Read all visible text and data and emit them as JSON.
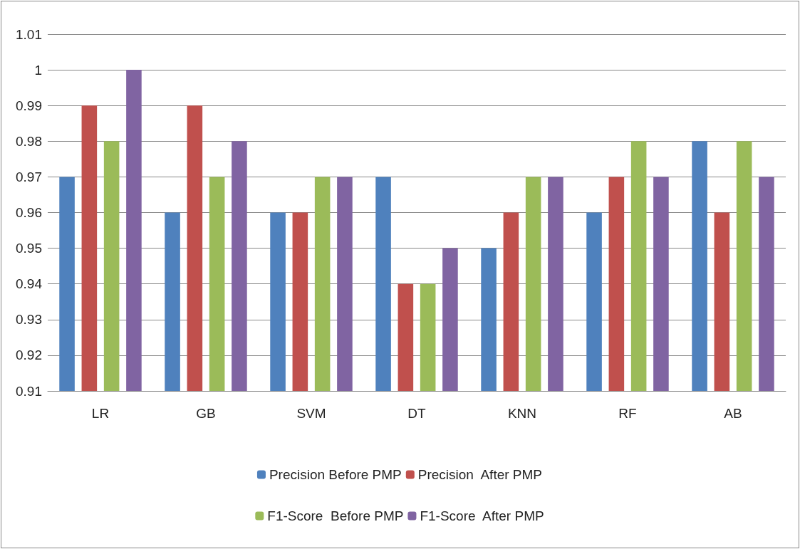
{
  "chart_data": {
    "type": "bar",
    "categories": [
      "LR",
      "GB",
      "SVM",
      "DT",
      "KNN",
      "RF",
      "AB"
    ],
    "series": [
      {
        "name": "Precision Before PMP",
        "color": "#4f81bd",
        "values": [
          0.97,
          0.96,
          0.96,
          0.97,
          0.95,
          0.96,
          0.98
        ]
      },
      {
        "name": "Precision  After PMP",
        "color": "#c0504d",
        "values": [
          0.99,
          0.99,
          0.96,
          0.94,
          0.96,
          0.97,
          0.96
        ]
      },
      {
        "name": "F1-Score  Before PMP",
        "color": "#9bbb59",
        "values": [
          0.98,
          0.97,
          0.97,
          0.94,
          0.97,
          0.98,
          0.98
        ]
      },
      {
        "name": "F1-Score  After PMP",
        "color": "#8064a2",
        "values": [
          1,
          0.98,
          0.97,
          0.95,
          0.97,
          0.97,
          0.97
        ]
      }
    ],
    "ylim": [
      0.91,
      1.01
    ],
    "yticks": [
      0.91,
      0.92,
      0.93,
      0.94,
      0.95,
      0.96,
      0.97,
      0.98,
      0.99,
      1,
      1.01
    ],
    "grid": "y",
    "legend": "bottom"
  }
}
